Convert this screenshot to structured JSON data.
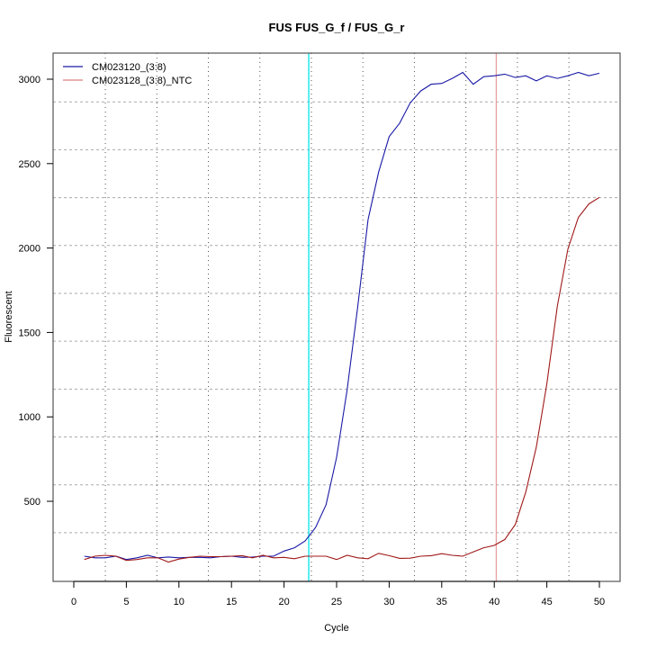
{
  "chart_data": {
    "type": "line",
    "title": "FUS  FUS_G_f / FUS_G_r",
    "xlabel": "Cycle",
    "ylabel": "Fluorescent",
    "xlim": [
      0,
      50
    ],
    "ylim": [
      26,
      3140
    ],
    "xticks": [
      0,
      5,
      10,
      15,
      20,
      25,
      30,
      35,
      40,
      45,
      50
    ],
    "yticks": [
      500,
      1000,
      1500,
      2000,
      2500,
      3000
    ],
    "grid": true,
    "legend_position": "top-left",
    "threshold_lines": [
      {
        "x": 22.35,
        "color": "#00e5ee"
      },
      {
        "x": 40.19,
        "color": "#e8a0a0"
      }
    ],
    "x": [
      1,
      2,
      3,
      4,
      5,
      6,
      7,
      8,
      9,
      10,
      11,
      12,
      13,
      14,
      15,
      16,
      17,
      18,
      19,
      20,
      21,
      22,
      23,
      24,
      25,
      26,
      27,
      28,
      29,
      30,
      31,
      32,
      33,
      34,
      35,
      36,
      37,
      38,
      39,
      40,
      41,
      42,
      43,
      44,
      45,
      46,
      47,
      48,
      49,
      50
    ],
    "series": [
      {
        "name": "CM023120_(3:8)",
        "color": "#1a1aa6",
        "legend_color": "#1a1aa6",
        "values": [
          175,
          165,
          165,
          175,
          155,
          165,
          180,
          165,
          170,
          165,
          168,
          168,
          165,
          172,
          175,
          168,
          170,
          175,
          175,
          205,
          225,
          265,
          345,
          480,
          760,
          1160,
          1650,
          2170,
          2450,
          2660,
          2740,
          2860,
          2930,
          2970,
          2975,
          3005,
          3040,
          2970,
          3015,
          3020,
          3030,
          3010,
          3020,
          2990,
          3020,
          3005,
          3020,
          3040,
          3020,
          3035
        ]
      },
      {
        "name": "CM023128_(3:8)_NTC",
        "color": "#a01818",
        "legend_color": "#d98080",
        "values": [
          155,
          175,
          180,
          175,
          150,
          155,
          165,
          165,
          140,
          158,
          168,
          175,
          172,
          172,
          175,
          178,
          165,
          180,
          165,
          168,
          160,
          175,
          175,
          175,
          155,
          180,
          165,
          160,
          192,
          178,
          162,
          163,
          175,
          178,
          190,
          180,
          175,
          200,
          225,
          239,
          274,
          363,
          555,
          821,
          1195,
          1657,
          1994,
          2181,
          2261,
          2300
        ]
      }
    ]
  }
}
